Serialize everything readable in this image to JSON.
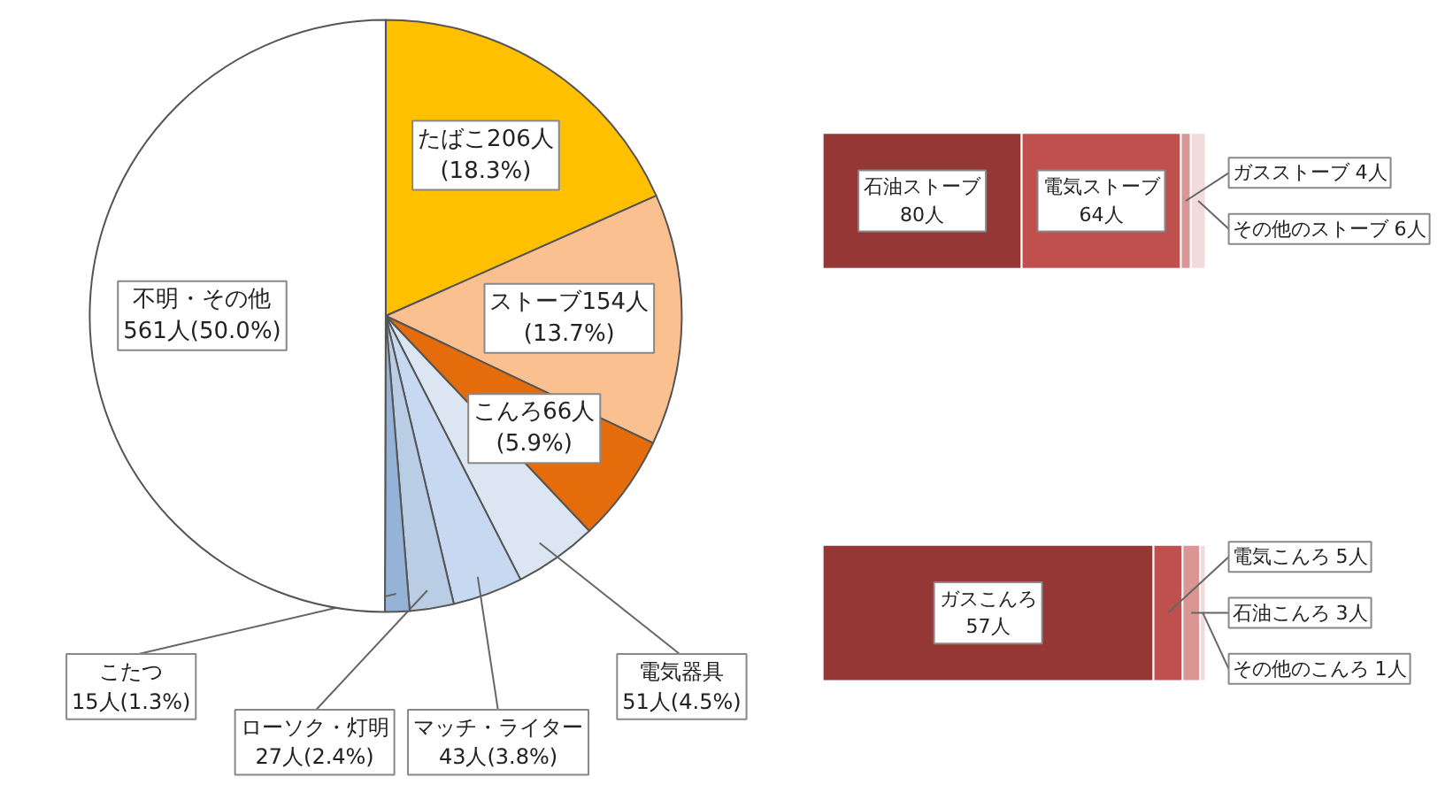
{
  "chart_data": [
    {
      "type": "pie",
      "categories": [
        "たばこ",
        "ストーブ",
        "こんろ",
        "電気器具",
        "マッチ・ライター",
        "ローソク・灯明",
        "こたつ",
        "不明・その他"
      ],
      "values": [
        206,
        154,
        66,
        51,
        43,
        27,
        15,
        561
      ],
      "colors": [
        "#ffc000",
        "#fac090",
        "#e46c0a",
        "#dce6f2",
        "#c6d9f1",
        "#b9cde5",
        "#95b3d7",
        "#ffffff"
      ],
      "value_labels": [
        "206人 (18.3%)",
        "154人 (13.7%)",
        "66人 (5.9%)",
        "51人(4.5%)",
        "43人(3.8%)",
        "27人(2.4%)",
        "15人(1.3%)",
        "561人(50.0%)"
      ]
    },
    {
      "type": "bar",
      "orientation": "horizontal",
      "stacked": true,
      "categories": [
        null
      ],
      "tick_labels": false,
      "series": [
        {
          "name": "石油ストーブ",
          "color": "#953735",
          "values": [
            80
          ],
          "value_labels": [
            "80人"
          ]
        },
        {
          "name": "電気ストーブ",
          "color": "#c0504d",
          "values": [
            64
          ],
          "value_labels": [
            "64人"
          ]
        },
        {
          "name": "ガスストーブ",
          "color": "#d99694",
          "values": [
            4
          ],
          "value_labels": [
            "4人"
          ]
        },
        {
          "name": "その他のストーブ",
          "color": "#f2dcdb",
          "values": [
            6
          ],
          "value_labels": [
            "6人"
          ]
        }
      ]
    },
    {
      "type": "bar",
      "orientation": "horizontal",
      "stacked": true,
      "categories": [
        null
      ],
      "tick_labels": false,
      "series": [
        {
          "name": "ガスこんろ",
          "color": "#953735",
          "values": [
            57
          ],
          "value_labels": [
            "57人"
          ]
        },
        {
          "name": "電気こんろ",
          "color": "#c0504d",
          "values": [
            5
          ],
          "value_labels": [
            "5人"
          ]
        },
        {
          "name": "石油こんろ",
          "color": "#d99694",
          "values": [
            3
          ],
          "value_labels": [
            "3人"
          ]
        },
        {
          "name": "その他のこんろ",
          "color": "#f2dcdb",
          "values": [
            1
          ],
          "value_labels": [
            "1人"
          ]
        }
      ]
    }
  ]
}
